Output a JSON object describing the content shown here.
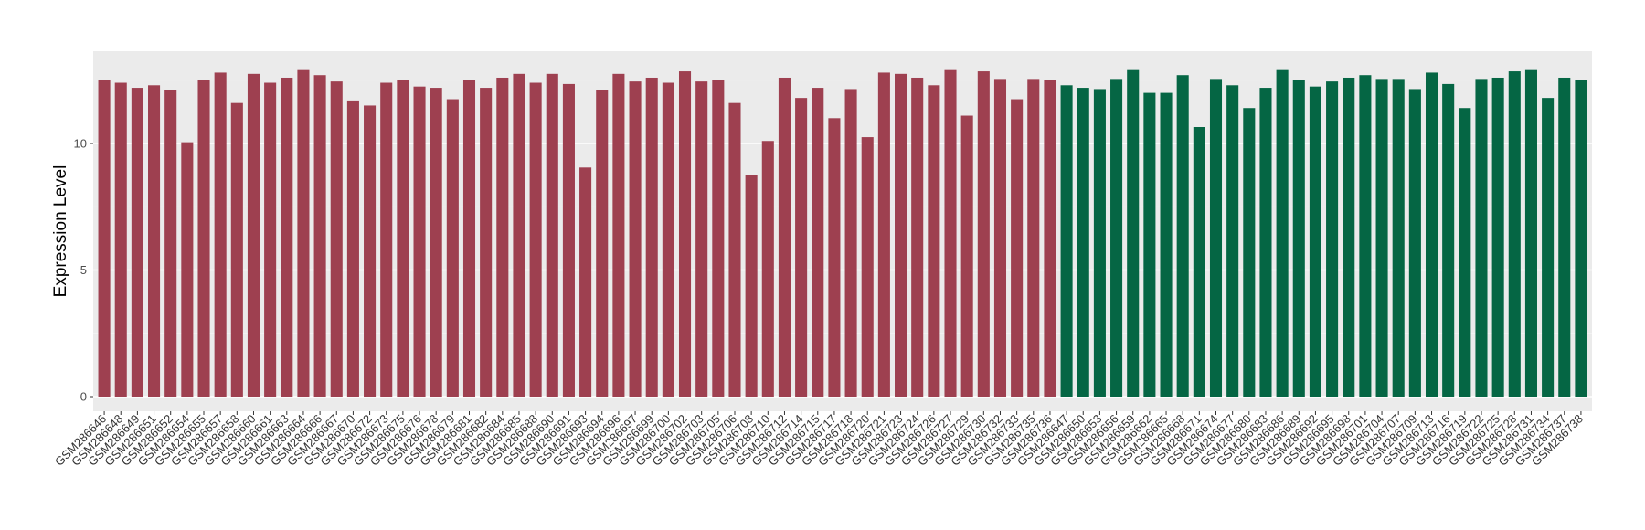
{
  "chart_data": {
    "type": "bar",
    "title": "",
    "xlabel": "",
    "ylabel": "Expression Level",
    "ylim": [
      0,
      13.6
    ],
    "yticks": [
      0,
      5,
      10
    ],
    "grid": true,
    "legend": "none",
    "colors": {
      "group_1": "#9E4050",
      "group_2": "#056644",
      "panel": "#EBEBEB",
      "gridline": "#FFFFFF"
    },
    "categories": [
      "GSM286646",
      "GSM286648",
      "GSM286649",
      "GSM286651",
      "GSM286652",
      "GSM286654",
      "GSM286655",
      "GSM286657",
      "GSM286658",
      "GSM286660",
      "GSM286661",
      "GSM286663",
      "GSM286664",
      "GSM286666",
      "GSM286667",
      "GSM286670",
      "GSM286672",
      "GSM286673",
      "GSM286675",
      "GSM286676",
      "GSM286678",
      "GSM286679",
      "GSM286681",
      "GSM286682",
      "GSM286684",
      "GSM286685",
      "GSM286688",
      "GSM286690",
      "GSM286691",
      "GSM286693",
      "GSM286694",
      "GSM286696",
      "GSM286697",
      "GSM286699",
      "GSM286700",
      "GSM286702",
      "GSM286703",
      "GSM286705",
      "GSM286706",
      "GSM286708",
      "GSM286710",
      "GSM286712",
      "GSM286714",
      "GSM286715",
      "GSM286717",
      "GSM286718",
      "GSM286720",
      "GSM286721",
      "GSM286723",
      "GSM286724",
      "GSM286726",
      "GSM286727",
      "GSM286729",
      "GSM286730",
      "GSM286732",
      "GSM286733",
      "GSM286735",
      "GSM286736",
      "GSM286647",
      "GSM286650",
      "GSM286653",
      "GSM286656",
      "GSM286659",
      "GSM286662",
      "GSM286665",
      "GSM286668",
      "GSM286671",
      "GSM286674",
      "GSM286677",
      "GSM286680",
      "GSM286683",
      "GSM286686",
      "GSM286689",
      "GSM286692",
      "GSM286695",
      "GSM286698",
      "GSM286701",
      "GSM286704",
      "GSM286707",
      "GSM286709",
      "GSM286713",
      "GSM286716",
      "GSM286719",
      "GSM286722",
      "GSM286725",
      "GSM286728",
      "GSM286731",
      "GSM286734",
      "GSM286737",
      "GSM286738"
    ],
    "values": [
      12.5,
      12.4,
      12.2,
      12.3,
      12.1,
      10.05,
      12.5,
      12.8,
      11.6,
      12.75,
      12.4,
      12.6,
      12.9,
      12.7,
      12.45,
      11.7,
      11.5,
      12.4,
      12.5,
      12.25,
      12.2,
      11.75,
      12.5,
      12.2,
      12.6,
      12.75,
      12.4,
      12.75,
      12.35,
      9.05,
      12.1,
      12.75,
      12.45,
      12.6,
      12.4,
      12.85,
      12.45,
      12.5,
      11.6,
      8.75,
      10.1,
      12.6,
      11.8,
      12.2,
      11.0,
      12.15,
      10.25,
      12.8,
      12.75,
      12.6,
      12.3,
      12.9,
      11.1,
      12.85,
      12.55,
      11.75,
      12.55,
      12.5,
      12.3,
      12.2,
      12.15,
      12.55,
      12.9,
      12.0,
      12.0,
      12.7,
      10.65,
      12.55,
      12.3,
      11.4,
      12.2,
      12.9,
      12.5,
      12.25,
      12.45,
      12.6,
      12.7,
      12.55,
      12.55,
      12.15,
      12.8,
      12.35,
      11.4,
      12.55,
      12.6,
      12.85,
      12.9,
      11.8,
      12.6,
      12.5
    ],
    "group_sizes": [
      58,
      32
    ]
  }
}
